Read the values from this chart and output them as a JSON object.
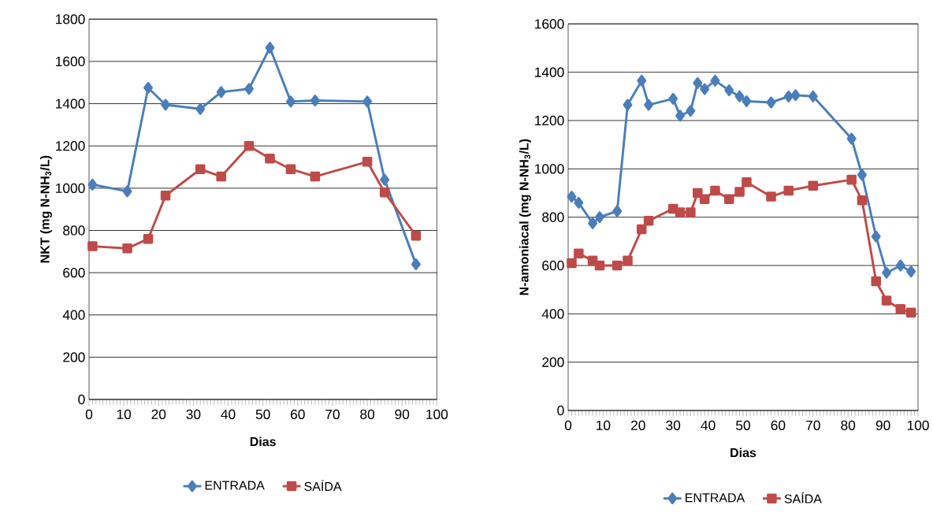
{
  "chart_data": [
    {
      "type": "line",
      "xlabel": "Dias",
      "ylabel": "NKT (mg N-NH$_{3}$/L)",
      "xlim": [
        0,
        100
      ],
      "ylim": [
        0,
        1800
      ],
      "xticks": [
        0,
        10,
        20,
        30,
        40,
        50,
        60,
        70,
        80,
        90,
        100
      ],
      "yticks": [
        0,
        200,
        400,
        600,
        800,
        1000,
        1200,
        1400,
        1600,
        1800
      ],
      "grid": "y",
      "legend": "bottom",
      "line_style": "solid",
      "series": [
        {
          "name": "ENTRADA",
          "color": "#4a7ebb",
          "marker": "diamond",
          "x": [
            1,
            11,
            17,
            22,
            32,
            38,
            46,
            52,
            58,
            65,
            80,
            85,
            94
          ],
          "values": [
            1017,
            985,
            1475,
            1395,
            1375,
            1455,
            1470,
            1665,
            1410,
            1415,
            1410,
            1040,
            640
          ]
        },
        {
          "name": "SAÍDA",
          "color": "#be4b48",
          "marker": "square",
          "x": [
            1,
            11,
            17,
            22,
            32,
            38,
            46,
            52,
            58,
            65,
            80,
            85,
            94
          ],
          "values": [
            725,
            715,
            760,
            965,
            1090,
            1055,
            1200,
            1140,
            1090,
            1055,
            1125,
            980,
            775
          ]
        }
      ]
    },
    {
      "type": "line",
      "xlabel": "Dias",
      "ylabel": "N-amoniacal (mg N-NH$_{3}$/L)",
      "xlim": [
        0,
        100
      ],
      "ylim": [
        0,
        1600
      ],
      "xticks": [
        0,
        10,
        20,
        30,
        40,
        50,
        60,
        70,
        80,
        90,
        100
      ],
      "yticks": [
        0,
        200,
        400,
        600,
        800,
        1000,
        1200,
        1400,
        1600
      ],
      "grid": "y",
      "legend": "bottom",
      "line_style": "solid",
      "series": [
        {
          "name": "ENTRADA",
          "color": "#4a7ebb",
          "marker": "diamond",
          "x": [
            1,
            3,
            7,
            9,
            14,
            17,
            21,
            23,
            30,
            32,
            35,
            37,
            39,
            42,
            46,
            49,
            51,
            58,
            63,
            65,
            70,
            81,
            84,
            88,
            91,
            95,
            98
          ],
          "values": [
            885,
            860,
            775,
            800,
            825,
            1265,
            1365,
            1265,
            1290,
            1220,
            1240,
            1355,
            1330,
            1365,
            1325,
            1300,
            1280,
            1275,
            1300,
            1305,
            1300,
            1125,
            975,
            720,
            570,
            600,
            575
          ]
        },
        {
          "name": "SAÍDA",
          "color": "#be4b48",
          "marker": "square",
          "x": [
            1,
            3,
            7,
            9,
            14,
            17,
            21,
            23,
            30,
            32,
            35,
            37,
            39,
            42,
            46,
            49,
            51,
            58,
            63,
            70,
            81,
            84,
            88,
            91,
            95,
            98
          ],
          "values": [
            610,
            650,
            620,
            600,
            600,
            620,
            750,
            785,
            835,
            820,
            820,
            900,
            875,
            910,
            875,
            905,
            945,
            885,
            910,
            930,
            955,
            870,
            535,
            455,
            420,
            405
          ]
        }
      ]
    }
  ]
}
